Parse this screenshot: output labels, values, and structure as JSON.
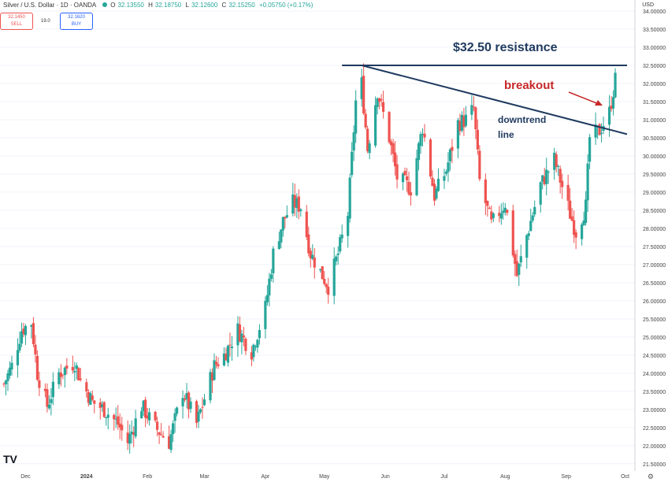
{
  "header": {
    "title": "Silver / U.S. Dollar · 1D · OANDA",
    "ohlc": {
      "o_label": "O",
      "o": "32.13550",
      "h_label": "H",
      "h": "32.18750",
      "l_label": "L",
      "l": "32.12600",
      "c_label": "C",
      "c": "32.15250",
      "change": "+0.05750 (+0.17%)"
    },
    "sell_price": "32.1450",
    "sell_label": "SELL",
    "spread": "19.0",
    "buy_price": "32.1620",
    "buy_label": "BUY",
    "currency": "USD"
  },
  "logo_text": "TV",
  "colors": {
    "up": "#26a69a",
    "down": "#ef5350",
    "line": "#1f3a5f",
    "annotation_red": "#c62828",
    "annotation_navy": "#1f3a5f"
  },
  "chart_data": {
    "type": "candlestick",
    "ylim": [
      21.3,
      34.0
    ],
    "y_ticks": [
      "21.50000",
      "22.00000",
      "22.50000",
      "23.00000",
      "23.50000",
      "24.00000",
      "24.50000",
      "25.00000",
      "25.50000",
      "26.00000",
      "26.50000",
      "27.00000",
      "27.50000",
      "28.00000",
      "28.50000",
      "29.00000",
      "29.50000",
      "30.00000",
      "30.50000",
      "31.00000",
      "31.50000",
      "32.00000",
      "32.50000",
      "33.00000",
      "33.50000",
      "34.00000"
    ],
    "x_ticks": [
      "Dec",
      "2024",
      "Feb",
      "Mar",
      "Apr",
      "May",
      "Jun",
      "Jul",
      "Aug",
      "Sep",
      "Oct"
    ],
    "close_path": [
      [
        "2023-11-20",
        23.7
      ],
      [
        "2023-11-24",
        24.2
      ],
      [
        "2023-11-29",
        25.2
      ],
      [
        "2023-12-04",
        25.4
      ],
      [
        "2023-12-07",
        24.0
      ],
      [
        "2023-12-12",
        23.1
      ],
      [
        "2023-12-18",
        24.0
      ],
      [
        "2023-12-26",
        24.3
      ],
      [
        "2023-12-29",
        23.8
      ],
      [
        "2024-01-04",
        23.2
      ],
      [
        "2024-01-10",
        23.0
      ],
      [
        "2024-01-17",
        22.6
      ],
      [
        "2024-01-22",
        22.1
      ],
      [
        "2024-01-29",
        23.1
      ],
      [
        "2024-02-05",
        22.5
      ],
      [
        "2024-02-12",
        22.1
      ],
      [
        "2024-02-19",
        23.5
      ],
      [
        "2024-02-26",
        22.6
      ],
      [
        "2024-03-01",
        23.3
      ],
      [
        "2024-03-06",
        24.2
      ],
      [
        "2024-03-11",
        24.5
      ],
      [
        "2024-03-18",
        25.2
      ],
      [
        "2024-03-25",
        24.6
      ],
      [
        "2024-04-01",
        25.8
      ],
      [
        "2024-04-05",
        27.3
      ],
      [
        "2024-04-10",
        28.2
      ],
      [
        "2024-04-15",
        28.7
      ],
      [
        "2024-04-19",
        28.6
      ],
      [
        "2024-04-24",
        27.3
      ],
      [
        "2024-04-30",
        26.7
      ],
      [
        "2024-05-03",
        26.4
      ],
      [
        "2024-05-08",
        27.3
      ],
      [
        "2024-05-13",
        28.4
      ],
      [
        "2024-05-17",
        31.5
      ],
      [
        "2024-05-20",
        32.0
      ],
      [
        "2024-05-23",
        30.2
      ],
      [
        "2024-05-28",
        31.8
      ],
      [
        "2024-06-03",
        30.5
      ],
      [
        "2024-06-07",
        29.4
      ],
      [
        "2024-06-14",
        29.1
      ],
      [
        "2024-06-20",
        30.8
      ],
      [
        "2024-06-26",
        28.9
      ],
      [
        "2024-07-02",
        29.6
      ],
      [
        "2024-07-08",
        30.9
      ],
      [
        "2024-07-12",
        31.0
      ],
      [
        "2024-07-16",
        31.3
      ],
      [
        "2024-07-19",
        29.3
      ],
      [
        "2024-07-25",
        28.1
      ],
      [
        "2024-08-01",
        28.7
      ],
      [
        "2024-08-07",
        26.7
      ],
      [
        "2024-08-12",
        27.8
      ],
      [
        "2024-08-19",
        29.2
      ],
      [
        "2024-08-26",
        29.9
      ],
      [
        "2024-09-03",
        28.4
      ],
      [
        "2024-09-06",
        27.9
      ],
      [
        "2024-09-11",
        28.6
      ],
      [
        "2024-09-13",
        30.5
      ],
      [
        "2024-09-18",
        30.7
      ],
      [
        "2024-09-23",
        31.2
      ],
      [
        "2024-09-26",
        32.1
      ]
    ],
    "resistance_line": {
      "value": 32.5,
      "from": "2024-05-20",
      "to": "2024-10-02"
    },
    "downtrend_line": {
      "from": [
        "2024-05-20",
        32.5
      ],
      "to": [
        "2024-10-02",
        30.6
      ]
    }
  },
  "annotations": {
    "resistance": "$32.50 resistance",
    "breakout": "breakout",
    "downtrend_line1": "downtrend",
    "downtrend_line2": "line"
  },
  "footer_icon": "gear-icon"
}
